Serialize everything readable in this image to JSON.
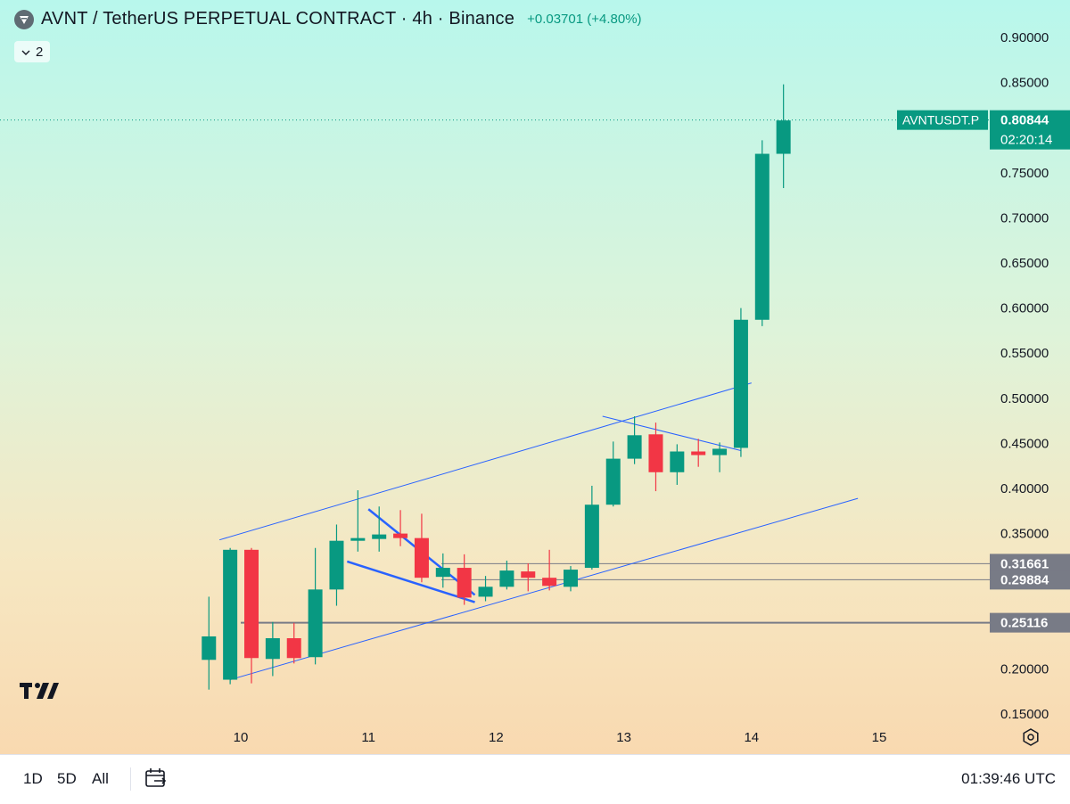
{
  "header": {
    "title": "AVNT / TetherUS PERPETUAL CONTRACT · 4h · Binance",
    "change": "+0.03701 (+4.80%)",
    "indicators_count": "2"
  },
  "colors": {
    "up": "#089981",
    "down": "#f23645",
    "trendline": "#2962ff",
    "label_gray": "#787b86"
  },
  "bottom_bar": {
    "ranges": [
      "1D",
      "5D",
      "All"
    ],
    "clock": "01:39:46 UTC"
  },
  "chart_data": {
    "type": "candlestick",
    "symbol_label": "AVNTUSDT.P",
    "last_price_label": "0.80844",
    "countdown": "02:20:14",
    "y_ticks": [
      "0.90000",
      "0.85000",
      "0.80000",
      "0.75000",
      "0.70000",
      "0.65000",
      "0.60000",
      "0.55000",
      "0.50000",
      "0.45000",
      "0.40000",
      "0.35000",
      "0.30000",
      "0.25000",
      "0.20000",
      "0.15000"
    ],
    "y_tick_values": [
      0.9,
      0.85,
      0.8,
      0.75,
      0.7,
      0.65,
      0.6,
      0.55,
      0.5,
      0.45,
      0.4,
      0.35,
      0.3,
      0.25,
      0.2,
      0.15
    ],
    "x_ticks": [
      "10",
      "11",
      "12",
      "13",
      "14",
      "15"
    ],
    "x_tick_dates": [
      "2025-09-10",
      "2025-09-11",
      "2025-09-12",
      "2025-09-13",
      "2025-09-14",
      "2025-09-15"
    ],
    "interval": "4h",
    "price_levels": [
      {
        "label": "0.31661",
        "value": 0.31661
      },
      {
        "label": "0.29884",
        "value": 0.29884
      },
      {
        "label": "0.25116",
        "value": 0.25116
      }
    ],
    "candles": [
      {
        "t": "2025-09-09 16:00",
        "open": 0.21,
        "high": 0.28,
        "low": 0.177,
        "close": 0.236
      },
      {
        "t": "2025-09-09 20:00",
        "open": 0.188,
        "high": 0.334,
        "low": 0.183,
        "close": 0.332
      },
      {
        "t": "2025-09-10 00:00",
        "open": 0.332,
        "high": 0.334,
        "low": 0.184,
        "close": 0.212
      },
      {
        "t": "2025-09-10 04:00",
        "open": 0.211,
        "high": 0.252,
        "low": 0.192,
        "close": 0.234
      },
      {
        "t": "2025-09-10 08:00",
        "open": 0.234,
        "high": 0.251,
        "low": 0.206,
        "close": 0.212
      },
      {
        "t": "2025-09-10 12:00",
        "open": 0.213,
        "high": 0.334,
        "low": 0.205,
        "close": 0.288
      },
      {
        "t": "2025-09-10 16:00",
        "open": 0.288,
        "high": 0.36,
        "low": 0.27,
        "close": 0.342
      },
      {
        "t": "2025-09-10 20:00",
        "open": 0.342,
        "high": 0.398,
        "low": 0.33,
        "close": 0.345
      },
      {
        "t": "2025-09-11 00:00",
        "open": 0.344,
        "high": 0.38,
        "low": 0.33,
        "close": 0.349
      },
      {
        "t": "2025-09-11 04:00",
        "open": 0.35,
        "high": 0.376,
        "low": 0.336,
        "close": 0.345
      },
      {
        "t": "2025-09-11 08:00",
        "open": 0.345,
        "high": 0.372,
        "low": 0.296,
        "close": 0.301
      },
      {
        "t": "2025-09-11 12:00",
        "open": 0.302,
        "high": 0.328,
        "low": 0.29,
        "close": 0.312
      },
      {
        "t": "2025-09-11 16:00",
        "open": 0.312,
        "high": 0.327,
        "low": 0.271,
        "close": 0.279
      },
      {
        "t": "2025-09-11 20:00",
        "open": 0.28,
        "high": 0.303,
        "low": 0.275,
        "close": 0.291
      },
      {
        "t": "2025-09-12 00:00",
        "open": 0.291,
        "high": 0.32,
        "low": 0.288,
        "close": 0.309
      },
      {
        "t": "2025-09-12 04:00",
        "open": 0.308,
        "high": 0.317,
        "low": 0.286,
        "close": 0.301
      },
      {
        "t": "2025-09-12 08:00",
        "open": 0.301,
        "high": 0.332,
        "low": 0.287,
        "close": 0.292
      },
      {
        "t": "2025-09-12 12:00",
        "open": 0.291,
        "high": 0.314,
        "low": 0.286,
        "close": 0.31
      },
      {
        "t": "2025-09-12 16:00",
        "open": 0.312,
        "high": 0.403,
        "low": 0.31,
        "close": 0.382
      },
      {
        "t": "2025-09-12 20:00",
        "open": 0.382,
        "high": 0.452,
        "low": 0.38,
        "close": 0.433
      },
      {
        "t": "2025-09-13 00:00",
        "open": 0.433,
        "high": 0.48,
        "low": 0.427,
        "close": 0.459
      },
      {
        "t": "2025-09-13 04:00",
        "open": 0.46,
        "high": 0.473,
        "low": 0.397,
        "close": 0.418
      },
      {
        "t": "2025-09-13 08:00",
        "open": 0.418,
        "high": 0.449,
        "low": 0.404,
        "close": 0.441
      },
      {
        "t": "2025-09-13 12:00",
        "open": 0.441,
        "high": 0.455,
        "low": 0.424,
        "close": 0.437
      },
      {
        "t": "2025-09-13 16:00",
        "open": 0.437,
        "high": 0.451,
        "low": 0.418,
        "close": 0.444
      },
      {
        "t": "2025-09-13 20:00",
        "open": 0.445,
        "high": 0.6,
        "low": 0.435,
        "close": 0.587
      },
      {
        "t": "2025-09-14 00:00",
        "open": 0.587,
        "high": 0.786,
        "low": 0.58,
        "close": 0.771
      },
      {
        "t": "2025-09-14 04:00",
        "open": 0.771,
        "high": 0.848,
        "low": 0.733,
        "close": 0.808
      }
    ],
    "trendlines": [
      {
        "name": "channel-upper",
        "t1": "2025-09-09 20:00",
        "p1": 0.343,
        "t2": "2025-09-14 00:00",
        "p2": 0.517
      },
      {
        "name": "channel-lower",
        "t1": "2025-09-09 22:00",
        "p1": 0.188,
        "t2": "2025-09-14 20:00",
        "p2": 0.389
      },
      {
        "name": "resistance-drop",
        "t1": "2025-09-12 20:00",
        "p1": 0.48,
        "t2": "2025-09-13 22:00",
        "p2": 0.442
      },
      {
        "name": "wedge-upper",
        "t1": "2025-09-11 00:00",
        "p1": 0.377,
        "t2": "2025-09-11 20:00",
        "p2": 0.282
      },
      {
        "name": "wedge-lower",
        "t1": "2025-09-10 20:00",
        "p1": 0.319,
        "t2": "2025-09-11 20:00",
        "p2": 0.274
      }
    ]
  }
}
